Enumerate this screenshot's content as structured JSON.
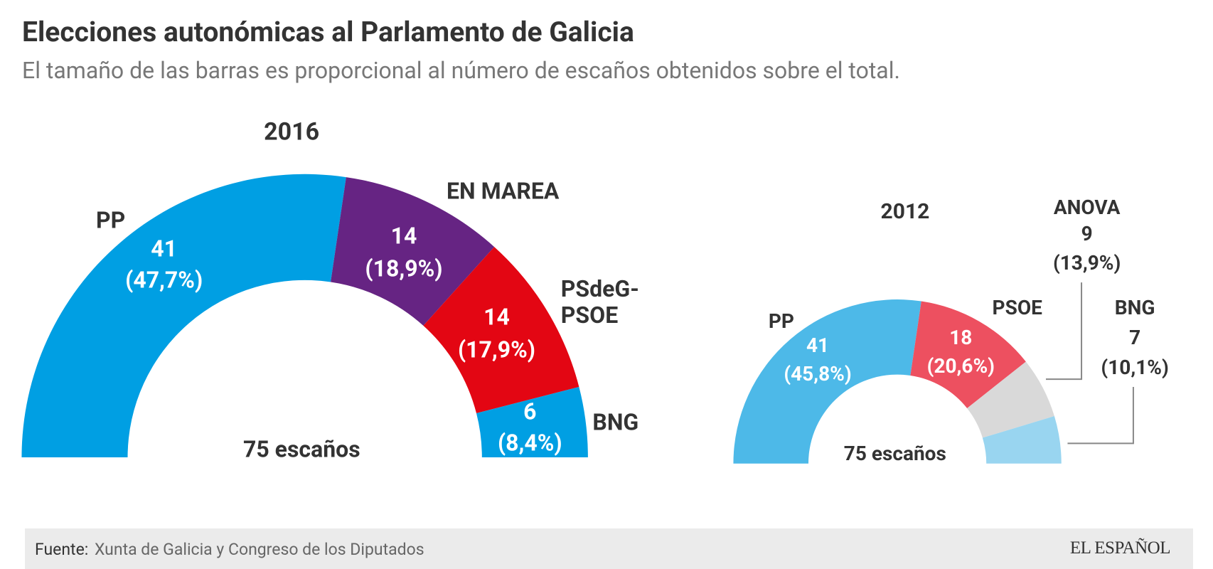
{
  "title": "Elecciones autonómicas al Parlamento de Galicia",
  "subtitle": "El tamaño de las barras es proporcional al número de escaños obtenidos sobre el total.",
  "source_label": "Fuente:",
  "source": "Xunta de Galicia y Congreso de los Diputados",
  "logo": "EL ESPAÑOL",
  "chart_data": [
    {
      "type": "semi-donut",
      "title": "2016",
      "total_label": "75 escaños",
      "categories": [
        "PP",
        "EN MAREA",
        "PSdeG-PSOE",
        "BNG"
      ],
      "values": [
        41,
        14,
        14,
        6
      ],
      "share_labels": [
        "(47,7%)",
        "(18,9%)",
        "(17,9%)",
        "(8,4%)"
      ],
      "colors": [
        "#009fe3",
        "#662483",
        "#e30613",
        "#009fe3"
      ]
    },
    {
      "type": "semi-donut",
      "title": "2012",
      "total_label": "75 escaños",
      "categories": [
        "PP",
        "PSOE",
        "ANOVA",
        "BNG"
      ],
      "values": [
        41,
        18,
        9,
        7
      ],
      "share_labels": [
        "(45,8%)",
        "(20,6%)",
        "(13,9%)",
        "(10,1%)"
      ],
      "colors": [
        "#4db9e8",
        "#ed5060",
        "#d9d9d9",
        "#99d5f0"
      ]
    }
  ]
}
